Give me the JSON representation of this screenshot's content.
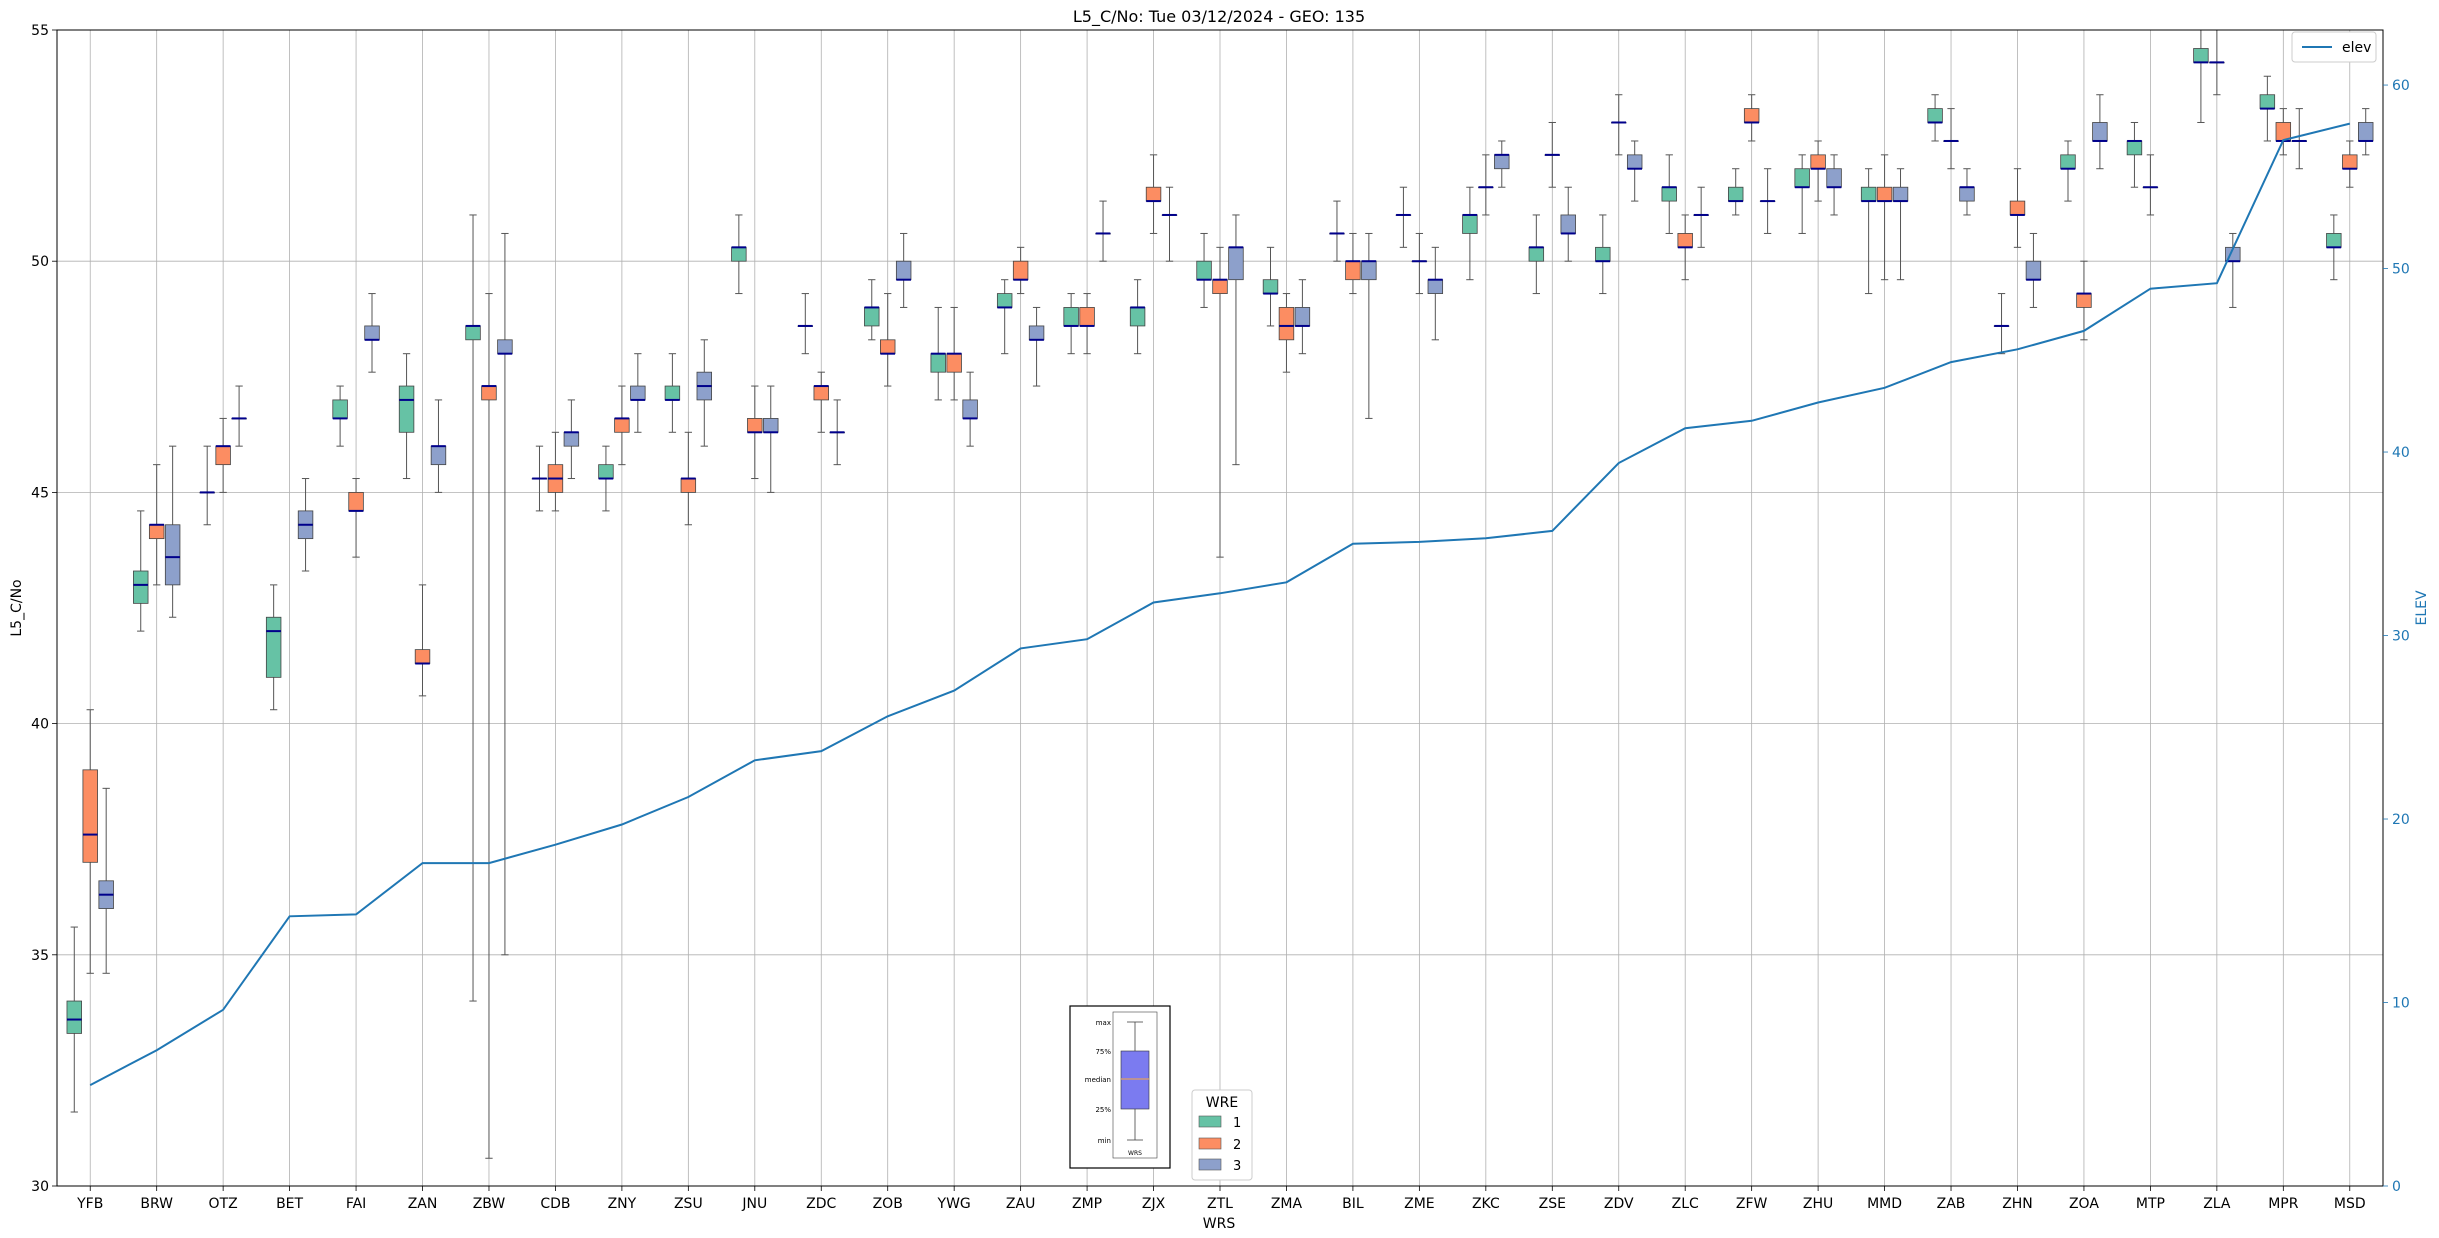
{
  "chart_data": {
    "type": "box",
    "title": "L5_C/No: Tue 03/12/2024 - GEO: 135",
    "xlabel": "WRS",
    "ylabel": "L5_C/No",
    "y2label": "ELEV",
    "ylim": [
      30,
      55
    ],
    "y2lim": [
      0,
      63
    ],
    "yticks": [
      30,
      35,
      40,
      45,
      50,
      55
    ],
    "y2ticks": [
      0,
      10,
      20,
      30,
      40,
      50,
      60
    ],
    "grid": true,
    "categories": [
      "YFB",
      "BRW",
      "OTZ",
      "BET",
      "FAI",
      "ZAN",
      "ZBW",
      "CDB",
      "ZNY",
      "ZSU",
      "JNU",
      "ZDC",
      "ZOB",
      "YWG",
      "ZAU",
      "ZMP",
      "ZJX",
      "ZTL",
      "ZMA",
      "BIL",
      "ZME",
      "ZKC",
      "ZSE",
      "ZDV",
      "ZLC",
      "ZFW",
      "ZHU",
      "MMD",
      "ZAB",
      "ZHN",
      "ZOA",
      "MTP",
      "ZLA",
      "MPR",
      "MSD"
    ],
    "wre_colors": {
      "1": "#66c2a5",
      "2": "#fc8d62",
      "3": "#8da0cb"
    },
    "median_color": "#00008b",
    "elev_color": "#1f77b4",
    "boxes": [
      {
        "cat": "YFB",
        "wre": 1,
        "min": 31.6,
        "q1": 33.3,
        "med": 33.6,
        "q3": 34.0,
        "max": 35.6
      },
      {
        "cat": "YFB",
        "wre": 2,
        "min": 34.6,
        "q1": 37.0,
        "med": 37.6,
        "q3": 39.0,
        "max": 40.3
      },
      {
        "cat": "YFB",
        "wre": 3,
        "min": 34.6,
        "q1": 36.0,
        "med": 36.3,
        "q3": 36.6,
        "max": 38.6
      },
      {
        "cat": "BRW",
        "wre": 1,
        "min": 42.0,
        "q1": 42.6,
        "med": 43.0,
        "q3": 43.3,
        "max": 44.6
      },
      {
        "cat": "BRW",
        "wre": 2,
        "min": 43.0,
        "q1": 44.0,
        "med": 44.3,
        "q3": 44.3,
        "max": 45.6
      },
      {
        "cat": "BRW",
        "wre": 3,
        "min": 42.3,
        "q1": 43.0,
        "med": 43.6,
        "q3": 44.3,
        "max": 46.0
      },
      {
        "cat": "OTZ",
        "wre": 1,
        "min": 44.3,
        "q1": 45.0,
        "med": 45.0,
        "q3": 45.0,
        "max": 46.0
      },
      {
        "cat": "OTZ",
        "wre": 2,
        "min": 45.0,
        "q1": 45.6,
        "med": 46.0,
        "q3": 46.0,
        "max": 46.6
      },
      {
        "cat": "OTZ",
        "wre": 3,
        "min": 46.0,
        "q1": 46.6,
        "med": 46.6,
        "q3": 46.6,
        "max": 47.3
      },
      {
        "cat": "BET",
        "wre": 1,
        "min": 40.3,
        "q1": 41.0,
        "med": 42.0,
        "q3": 42.3,
        "max": 43.0
      },
      {
        "cat": "BET",
        "wre": 3,
        "min": 43.3,
        "q1": 44.0,
        "med": 44.3,
        "q3": 44.6,
        "max": 45.3
      },
      {
        "cat": "FAI",
        "wre": 1,
        "min": 46.0,
        "q1": 46.6,
        "med": 46.6,
        "q3": 47.0,
        "max": 47.3
      },
      {
        "cat": "FAI",
        "wre": 2,
        "min": 43.6,
        "q1": 44.6,
        "med": 44.6,
        "q3": 45.0,
        "max": 45.3
      },
      {
        "cat": "FAI",
        "wre": 3,
        "min": 47.6,
        "q1": 48.3,
        "med": 48.3,
        "q3": 48.6,
        "max": 49.3
      },
      {
        "cat": "ZAN",
        "wre": 1,
        "min": 45.3,
        "q1": 46.3,
        "med": 47.0,
        "q3": 47.3,
        "max": 48.0
      },
      {
        "cat": "ZAN",
        "wre": 2,
        "min": 40.6,
        "q1": 41.3,
        "med": 41.3,
        "q3": 41.6,
        "max": 43.0
      },
      {
        "cat": "ZAN",
        "wre": 3,
        "min": 45.0,
        "q1": 45.6,
        "med": 46.0,
        "q3": 46.0,
        "max": 47.0
      },
      {
        "cat": "ZBW",
        "wre": 1,
        "min": 34.0,
        "q1": 48.3,
        "med": 48.6,
        "q3": 48.6,
        "max": 51.0
      },
      {
        "cat": "ZBW",
        "wre": 2,
        "min": 30.6,
        "q1": 47.0,
        "med": 47.3,
        "q3": 47.3,
        "max": 49.3
      },
      {
        "cat": "ZBW",
        "wre": 3,
        "min": 35.0,
        "q1": 48.0,
        "med": 48.0,
        "q3": 48.3,
        "max": 50.6
      },
      {
        "cat": "CDB",
        "wre": 1,
        "min": 44.6,
        "q1": 45.3,
        "med": 45.3,
        "q3": 45.3,
        "max": 46.0
      },
      {
        "cat": "CDB",
        "wre": 2,
        "min": 44.6,
        "q1": 45.0,
        "med": 45.3,
        "q3": 45.6,
        "max": 46.3
      },
      {
        "cat": "CDB",
        "wre": 3,
        "min": 45.3,
        "q1": 46.0,
        "med": 46.3,
        "q3": 46.3,
        "max": 47.0
      },
      {
        "cat": "ZNY",
        "wre": 1,
        "min": 44.6,
        "q1": 45.3,
        "med": 45.3,
        "q3": 45.6,
        "max": 46.0
      },
      {
        "cat": "ZNY",
        "wre": 2,
        "min": 45.6,
        "q1": 46.3,
        "med": 46.6,
        "q3": 46.6,
        "max": 47.3
      },
      {
        "cat": "ZNY",
        "wre": 3,
        "min": 46.3,
        "q1": 47.0,
        "med": 47.0,
        "q3": 47.3,
        "max": 48.0
      },
      {
        "cat": "ZSU",
        "wre": 1,
        "min": 46.3,
        "q1": 47.0,
        "med": 47.0,
        "q3": 47.3,
        "max": 48.0
      },
      {
        "cat": "ZSU",
        "wre": 2,
        "min": 44.3,
        "q1": 45.0,
        "med": 45.3,
        "q3": 45.3,
        "max": 46.3
      },
      {
        "cat": "ZSU",
        "wre": 3,
        "min": 46.0,
        "q1": 47.0,
        "med": 47.3,
        "q3": 47.6,
        "max": 48.3
      },
      {
        "cat": "JNU",
        "wre": 1,
        "min": 49.3,
        "q1": 50.0,
        "med": 50.3,
        "q3": 50.3,
        "max": 51.0
      },
      {
        "cat": "JNU",
        "wre": 2,
        "min": 45.3,
        "q1": 46.3,
        "med": 46.3,
        "q3": 46.6,
        "max": 47.3
      },
      {
        "cat": "JNU",
        "wre": 3,
        "min": 45.0,
        "q1": 46.3,
        "med": 46.3,
        "q3": 46.6,
        "max": 47.3
      },
      {
        "cat": "ZDC",
        "wre": 1,
        "min": 48.0,
        "q1": 48.6,
        "med": 48.6,
        "q3": 48.6,
        "max": 49.3
      },
      {
        "cat": "ZDC",
        "wre": 2,
        "min": 46.3,
        "q1": 47.0,
        "med": 47.3,
        "q3": 47.3,
        "max": 47.6
      },
      {
        "cat": "ZDC",
        "wre": 3,
        "min": 45.6,
        "q1": 46.3,
        "med": 46.3,
        "q3": 46.3,
        "max": 47.0
      },
      {
        "cat": "ZOB",
        "wre": 1,
        "min": 48.3,
        "q1": 48.6,
        "med": 49.0,
        "q3": 49.0,
        "max": 49.6
      },
      {
        "cat": "ZOB",
        "wre": 2,
        "min": 47.3,
        "q1": 48.0,
        "med": 48.0,
        "q3": 48.3,
        "max": 49.3
      },
      {
        "cat": "ZOB",
        "wre": 3,
        "min": 49.0,
        "q1": 49.6,
        "med": 49.6,
        "q3": 50.0,
        "max": 50.6
      },
      {
        "cat": "YWG",
        "wre": 1,
        "min": 47.0,
        "q1": 47.6,
        "med": 48.0,
        "q3": 48.0,
        "max": 49.0
      },
      {
        "cat": "YWG",
        "wre": 2,
        "min": 47.0,
        "q1": 47.6,
        "med": 48.0,
        "q3": 48.0,
        "max": 49.0
      },
      {
        "cat": "YWG",
        "wre": 3,
        "min": 46.0,
        "q1": 46.6,
        "med": 46.6,
        "q3": 47.0,
        "max": 47.6
      },
      {
        "cat": "ZAU",
        "wre": 1,
        "min": 48.0,
        "q1": 49.0,
        "med": 49.0,
        "q3": 49.3,
        "max": 49.6
      },
      {
        "cat": "ZAU",
        "wre": 2,
        "min": 49.3,
        "q1": 49.6,
        "med": 49.6,
        "q3": 50.0,
        "max": 50.3
      },
      {
        "cat": "ZAU",
        "wre": 3,
        "min": 47.3,
        "q1": 48.3,
        "med": 48.3,
        "q3": 48.6,
        "max": 49.0
      },
      {
        "cat": "ZMP",
        "wre": 1,
        "min": 48.0,
        "q1": 48.6,
        "med": 48.6,
        "q3": 49.0,
        "max": 49.3
      },
      {
        "cat": "ZMP",
        "wre": 2,
        "min": 48.0,
        "q1": 48.6,
        "med": 48.6,
        "q3": 49.0,
        "max": 49.3
      },
      {
        "cat": "ZMP",
        "wre": 3,
        "min": 50.0,
        "q1": 50.6,
        "med": 50.6,
        "q3": 50.6,
        "max": 51.3
      },
      {
        "cat": "ZJX",
        "wre": 1,
        "min": 48.0,
        "q1": 48.6,
        "med": 49.0,
        "q3": 49.0,
        "max": 49.6
      },
      {
        "cat": "ZJX",
        "wre": 2,
        "min": 50.6,
        "q1": 51.3,
        "med": 51.3,
        "q3": 51.6,
        "max": 52.3
      },
      {
        "cat": "ZJX",
        "wre": 3,
        "min": 50.0,
        "q1": 51.0,
        "med": 51.0,
        "q3": 51.0,
        "max": 51.6
      },
      {
        "cat": "ZTL",
        "wre": 1,
        "min": 49.0,
        "q1": 49.6,
        "med": 49.6,
        "q3": 50.0,
        "max": 50.6
      },
      {
        "cat": "ZTL",
        "wre": 2,
        "min": 43.6,
        "q1": 49.3,
        "med": 49.6,
        "q3": 49.6,
        "max": 50.3
      },
      {
        "cat": "ZTL",
        "wre": 3,
        "min": 45.6,
        "q1": 49.6,
        "med": 50.3,
        "q3": 50.3,
        "max": 51.0
      },
      {
        "cat": "ZMA",
        "wre": 1,
        "min": 48.6,
        "q1": 49.3,
        "med": 49.3,
        "q3": 49.6,
        "max": 50.3
      },
      {
        "cat": "ZMA",
        "wre": 2,
        "min": 47.6,
        "q1": 48.3,
        "med": 48.6,
        "q3": 49.0,
        "max": 49.3
      },
      {
        "cat": "ZMA",
        "wre": 3,
        "min": 48.0,
        "q1": 48.6,
        "med": 48.6,
        "q3": 49.0,
        "max": 49.6
      },
      {
        "cat": "BIL",
        "wre": 1,
        "min": 50.0,
        "q1": 50.6,
        "med": 50.6,
        "q3": 50.6,
        "max": 51.3
      },
      {
        "cat": "BIL",
        "wre": 2,
        "min": 49.3,
        "q1": 49.6,
        "med": 50.0,
        "q3": 50.0,
        "max": 50.6
      },
      {
        "cat": "BIL",
        "wre": 3,
        "min": 46.6,
        "q1": 49.6,
        "med": 50.0,
        "q3": 50.0,
        "max": 50.6
      },
      {
        "cat": "ZME",
        "wre": 1,
        "min": 50.3,
        "q1": 51.0,
        "med": 51.0,
        "q3": 51.0,
        "max": 51.6
      },
      {
        "cat": "ZME",
        "wre": 2,
        "min": 49.3,
        "q1": 50.0,
        "med": 50.0,
        "q3": 50.0,
        "max": 50.6
      },
      {
        "cat": "ZME",
        "wre": 3,
        "min": 48.3,
        "q1": 49.3,
        "med": 49.6,
        "q3": 49.6,
        "max": 50.3
      },
      {
        "cat": "ZKC",
        "wre": 1,
        "min": 49.6,
        "q1": 50.6,
        "med": 51.0,
        "q3": 51.0,
        "max": 51.6
      },
      {
        "cat": "ZKC",
        "wre": 2,
        "min": 51.0,
        "q1": 51.6,
        "med": 51.6,
        "q3": 51.6,
        "max": 52.3
      },
      {
        "cat": "ZKC",
        "wre": 3,
        "min": 51.6,
        "q1": 52.0,
        "med": 52.3,
        "q3": 52.3,
        "max": 52.6
      },
      {
        "cat": "ZSE",
        "wre": 1,
        "min": 49.3,
        "q1": 50.0,
        "med": 50.3,
        "q3": 50.3,
        "max": 51.0
      },
      {
        "cat": "ZSE",
        "wre": 2,
        "min": 51.6,
        "q1": 52.3,
        "med": 52.3,
        "q3": 52.3,
        "max": 53.0
      },
      {
        "cat": "ZSE",
        "wre": 3,
        "min": 50.0,
        "q1": 50.6,
        "med": 50.6,
        "q3": 51.0,
        "max": 51.6
      },
      {
        "cat": "ZDV",
        "wre": 1,
        "min": 49.3,
        "q1": 50.0,
        "med": 50.0,
        "q3": 50.3,
        "max": 51.0
      },
      {
        "cat": "ZDV",
        "wre": 2,
        "min": 52.3,
        "q1": 53.0,
        "med": 53.0,
        "q3": 53.0,
        "max": 53.6
      },
      {
        "cat": "ZDV",
        "wre": 3,
        "min": 51.3,
        "q1": 52.0,
        "med": 52.0,
        "q3": 52.3,
        "max": 52.6
      },
      {
        "cat": "ZLC",
        "wre": 1,
        "min": 50.6,
        "q1": 51.3,
        "med": 51.6,
        "q3": 51.6,
        "max": 52.3
      },
      {
        "cat": "ZLC",
        "wre": 2,
        "min": 49.6,
        "q1": 50.3,
        "med": 50.3,
        "q3": 50.6,
        "max": 51.0
      },
      {
        "cat": "ZLC",
        "wre": 3,
        "min": 50.3,
        "q1": 51.0,
        "med": 51.0,
        "q3": 51.0,
        "max": 51.6
      },
      {
        "cat": "ZFW",
        "wre": 1,
        "min": 51.0,
        "q1": 51.3,
        "med": 51.3,
        "q3": 51.6,
        "max": 52.0
      },
      {
        "cat": "ZFW",
        "wre": 2,
        "min": 52.6,
        "q1": 53.0,
        "med": 53.0,
        "q3": 53.3,
        "max": 53.6
      },
      {
        "cat": "ZFW",
        "wre": 3,
        "min": 50.6,
        "q1": 51.3,
        "med": 51.3,
        "q3": 51.3,
        "max": 52.0
      },
      {
        "cat": "ZHU",
        "wre": 1,
        "min": 50.6,
        "q1": 51.6,
        "med": 51.6,
        "q3": 52.0,
        "max": 52.3
      },
      {
        "cat": "ZHU",
        "wre": 2,
        "min": 51.3,
        "q1": 52.0,
        "med": 52.0,
        "q3": 52.3,
        "max": 52.6
      },
      {
        "cat": "ZHU",
        "wre": 3,
        "min": 51.0,
        "q1": 51.6,
        "med": 51.6,
        "q3": 52.0,
        "max": 52.3
      },
      {
        "cat": "MMD",
        "wre": 1,
        "min": 49.3,
        "q1": 51.3,
        "med": 51.3,
        "q3": 51.6,
        "max": 52.0
      },
      {
        "cat": "MMD",
        "wre": 2,
        "min": 49.6,
        "q1": 51.3,
        "med": 51.3,
        "q3": 51.6,
        "max": 52.3
      },
      {
        "cat": "MMD",
        "wre": 3,
        "min": 49.6,
        "q1": 51.3,
        "med": 51.3,
        "q3": 51.6,
        "max": 52.0
      },
      {
        "cat": "ZAB",
        "wre": 1,
        "min": 52.6,
        "q1": 53.0,
        "med": 53.0,
        "q3": 53.3,
        "max": 53.6
      },
      {
        "cat": "ZAB",
        "wre": 2,
        "min": 52.0,
        "q1": 52.6,
        "med": 52.6,
        "q3": 52.6,
        "max": 53.3
      },
      {
        "cat": "ZAB",
        "wre": 3,
        "min": 51.0,
        "q1": 51.3,
        "med": 51.6,
        "q3": 51.6,
        "max": 52.0
      },
      {
        "cat": "ZHN",
        "wre": 1,
        "min": 48.0,
        "q1": 48.6,
        "med": 48.6,
        "q3": 48.6,
        "max": 49.3
      },
      {
        "cat": "ZHN",
        "wre": 2,
        "min": 50.3,
        "q1": 51.0,
        "med": 51.0,
        "q3": 51.3,
        "max": 52.0
      },
      {
        "cat": "ZHN",
        "wre": 3,
        "min": 49.0,
        "q1": 49.6,
        "med": 49.6,
        "q3": 50.0,
        "max": 50.6
      },
      {
        "cat": "ZOA",
        "wre": 1,
        "min": 51.3,
        "q1": 52.0,
        "med": 52.0,
        "q3": 52.3,
        "max": 52.6
      },
      {
        "cat": "ZOA",
        "wre": 2,
        "min": 48.3,
        "q1": 49.0,
        "med": 49.3,
        "q3": 49.3,
        "max": 50.0
      },
      {
        "cat": "ZOA",
        "wre": 3,
        "min": 52.0,
        "q1": 52.6,
        "med": 52.6,
        "q3": 53.0,
        "max": 53.6
      },
      {
        "cat": "MTP",
        "wre": 1,
        "min": 51.6,
        "q1": 52.3,
        "med": 52.6,
        "q3": 52.6,
        "max": 53.0
      },
      {
        "cat": "MTP",
        "wre": 2,
        "min": 51.0,
        "q1": 51.6,
        "med": 51.6,
        "q3": 51.6,
        "max": 52.3
      },
      {
        "cat": "ZLA",
        "wre": 1,
        "min": 53.0,
        "q1": 54.3,
        "med": 54.3,
        "q3": 54.6,
        "max": 55.0
      },
      {
        "cat": "ZLA",
        "wre": 2,
        "min": 53.6,
        "q1": 54.3,
        "med": 54.3,
        "q3": 54.3,
        "max": 55.0
      },
      {
        "cat": "ZLA",
        "wre": 3,
        "min": 49.0,
        "q1": 50.0,
        "med": 50.0,
        "q3": 50.3,
        "max": 50.6
      },
      {
        "cat": "MPR",
        "wre": 1,
        "min": 52.6,
        "q1": 53.3,
        "med": 53.3,
        "q3": 53.6,
        "max": 54.0
      },
      {
        "cat": "MPR",
        "wre": 2,
        "min": 52.3,
        "q1": 52.6,
        "med": 52.6,
        "q3": 53.0,
        "max": 53.3
      },
      {
        "cat": "MPR",
        "wre": 3,
        "min": 52.0,
        "q1": 52.6,
        "med": 52.6,
        "q3": 52.6,
        "max": 53.3
      },
      {
        "cat": "MSD",
        "wre": 1,
        "min": 49.6,
        "q1": 50.3,
        "med": 50.3,
        "q3": 50.6,
        "max": 51.0
      },
      {
        "cat": "MSD",
        "wre": 2,
        "min": 51.6,
        "q1": 52.0,
        "med": 52.0,
        "q3": 52.3,
        "max": 52.6
      },
      {
        "cat": "MSD",
        "wre": 3,
        "min": 52.3,
        "q1": 52.6,
        "med": 52.6,
        "q3": 53.0,
        "max": 53.3
      }
    ],
    "elev_series": {
      "name": "elev",
      "x": [
        "YFB",
        "BRW",
        "OTZ",
        "BET",
        "FAI",
        "ZAN",
        "ZBW",
        "CDB",
        "ZNY",
        "ZSU",
        "JNU",
        "ZDC",
        "ZOB",
        "YWG",
        "ZAU",
        "ZMP",
        "ZJX",
        "ZTL",
        "ZMA",
        "BIL",
        "ZME",
        "ZKC",
        "ZSE",
        "ZDV",
        "ZLC",
        "ZFW",
        "ZHU",
        "MMD",
        "ZAB",
        "ZHN",
        "ZOA",
        "MTP",
        "ZLA",
        "MPR",
        "MSD"
      ],
      "values": [
        5.5,
        7.4,
        9.6,
        14.7,
        14.8,
        17.6,
        17.6,
        18.6,
        19.7,
        21.2,
        23.2,
        23.7,
        25.6,
        27.0,
        29.3,
        29.8,
        31.8,
        32.3,
        32.9,
        35.0,
        35.1,
        35.3,
        35.7,
        39.4,
        41.3,
        41.7,
        42.7,
        43.5,
        44.9,
        45.6,
        46.6,
        48.9,
        49.2,
        57.0,
        57.9
      ]
    },
    "legend_top": {
      "label": "elev",
      "placement": "top-right"
    },
    "legend_wre": {
      "title": "WRE",
      "entries": [
        {
          "label": "1"
        },
        {
          "label": "2"
        },
        {
          "label": "3"
        }
      ],
      "placement": "lower-center"
    },
    "box_key": {
      "labels": [
        "max",
        "75%",
        "median",
        "25%",
        "min"
      ],
      "xlabel": "WRS"
    }
  }
}
